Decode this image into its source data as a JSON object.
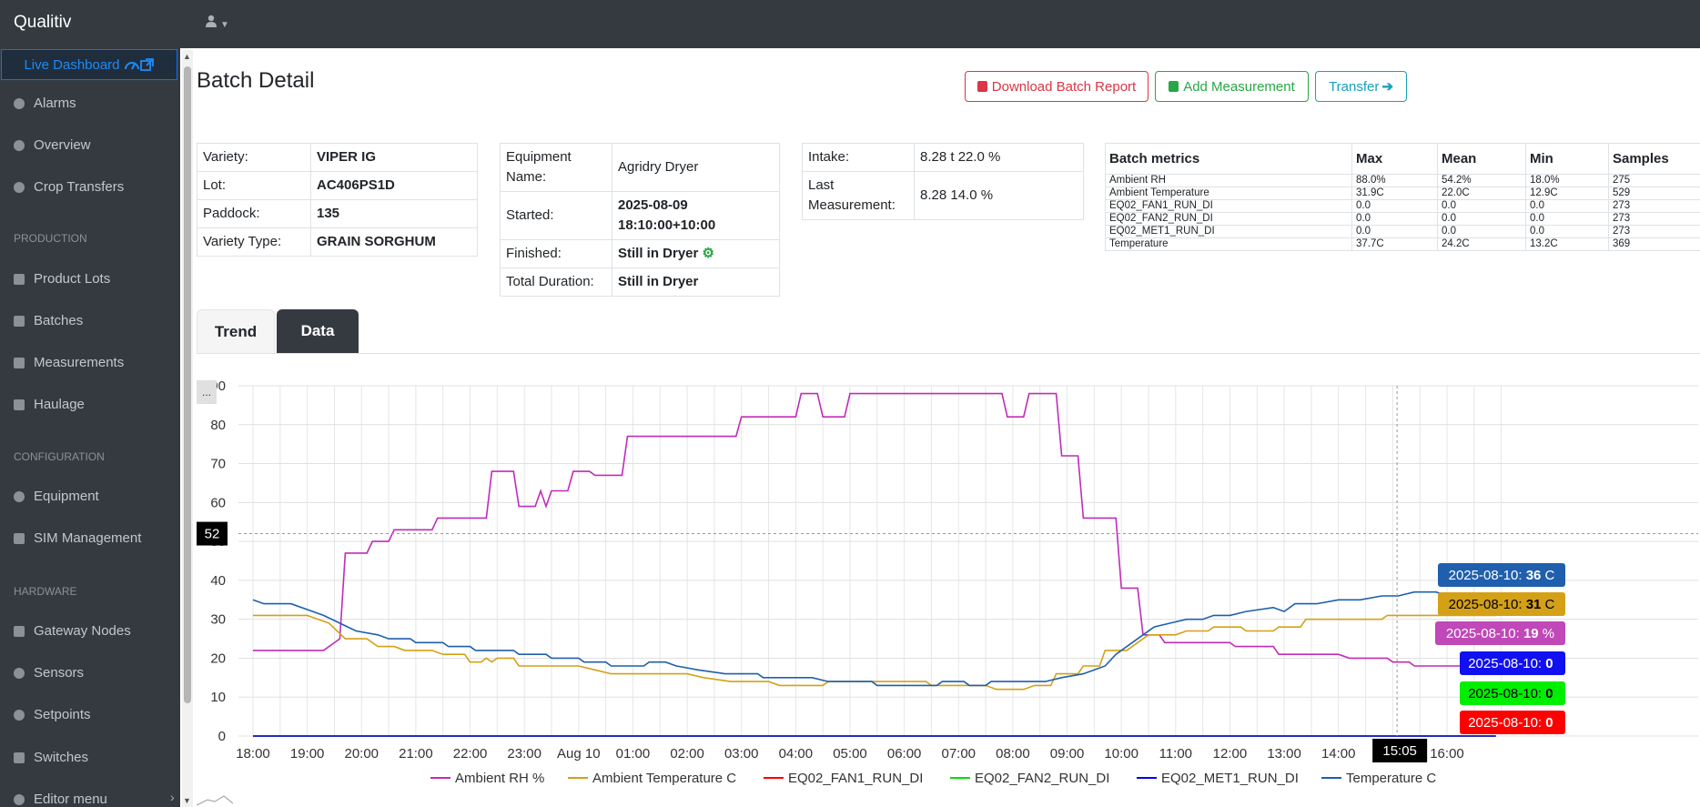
{
  "app": {
    "title": "Qualitiv"
  },
  "sidebar": {
    "live_dashboard": "Live Dashboard",
    "items": [
      {
        "label": "Alarms"
      },
      {
        "label": "Overview"
      },
      {
        "label": "Crop Transfers"
      },
      {
        "label": "Product Lots"
      },
      {
        "label": "Batches"
      },
      {
        "label": "Measurements"
      },
      {
        "label": "Haulage"
      },
      {
        "label": "Equipment"
      },
      {
        "label": "SIM Management"
      },
      {
        "label": "Gateway Nodes"
      },
      {
        "label": "Sensors"
      },
      {
        "label": "Setpoints"
      },
      {
        "label": "Switches"
      },
      {
        "label": "Editor menu"
      }
    ],
    "sections": {
      "production": "PRODUCTION",
      "configuration": "CONFIGURATION",
      "hardware": "HARDWARE"
    }
  },
  "page": {
    "title": "Batch Detail",
    "buttons": {
      "download": "Download Batch Report",
      "add": "Add Measurement",
      "transfer": "Transfer"
    }
  },
  "batch": [
    {
      "label": "Variety:",
      "value": "VIPER IG"
    },
    {
      "label": "Lot:",
      "value": "AC406PS1D"
    },
    {
      "label": "Paddock:",
      "value": "135"
    },
    {
      "label": "Variety Type:",
      "value": "GRAIN SORGHUM"
    }
  ],
  "equipment": [
    {
      "label": "Equipment Name:",
      "value": "Agridry Dryer"
    },
    {
      "label": "Started:",
      "value": "2025-08-09 18:10:00+10:00"
    },
    {
      "label": "Finished:",
      "value": "Still in Dryer"
    },
    {
      "label": "Total Duration:",
      "value": "Still in Dryer"
    }
  ],
  "intake": [
    {
      "label": "Intake:",
      "value": "8.28 t 22.0 %"
    },
    {
      "label": "Last Measurement:",
      "value": "8.28 14.0 %"
    }
  ],
  "metrics": {
    "headers": [
      "Batch metrics",
      "Max",
      "Mean",
      "Min",
      "Samples"
    ],
    "rows": [
      [
        "Ambient RH",
        "88.0%",
        "54.2%",
        "18.0%",
        "275"
      ],
      [
        "Ambient Temperature",
        "31.9C",
        "22.0C",
        "12.9C",
        "529"
      ],
      [
        "EQ02_FAN1_RUN_DI",
        "0.0",
        "0.0",
        "0.0",
        "273"
      ],
      [
        "EQ02_FAN2_RUN_DI",
        "0.0",
        "0.0",
        "0.0",
        "273"
      ],
      [
        "EQ02_MET1_RUN_DI",
        "0.0",
        "0.0",
        "0.0",
        "273"
      ],
      [
        "Temperature",
        "37.7C",
        "24.2C",
        "13.2C",
        "369"
      ]
    ]
  },
  "tabs": [
    {
      "label": "Trend"
    },
    {
      "label": "Data"
    }
  ],
  "chart_data": {
    "type": "line",
    "x_ticks": [
      "18:00",
      "19:00",
      "20:00",
      "21:00",
      "22:00",
      "23:00",
      "Aug 10",
      "01:00",
      "02:00",
      "03:00",
      "04:00",
      "05:00",
      "06:00",
      "07:00",
      "08:00",
      "09:00",
      "10:00",
      "11:00",
      "12:00",
      "13:00",
      "14:00",
      "15:00",
      "16:00"
    ],
    "y_ticks": [
      0,
      10,
      20,
      30,
      40,
      50,
      60,
      70,
      80,
      90
    ],
    "ylim": [
      0,
      90
    ],
    "crosshair": {
      "x_label": "15:05",
      "y_label": "52"
    },
    "series": [
      {
        "name": "Ambient RH %",
        "color": "#c02cba",
        "unit": "%",
        "points": [
          [
            18.0,
            22
          ],
          [
            19.3,
            22
          ],
          [
            19.6,
            25
          ],
          [
            19.7,
            47
          ],
          [
            20.1,
            47
          ],
          [
            20.2,
            50
          ],
          [
            20.5,
            50
          ],
          [
            20.6,
            53
          ],
          [
            21.3,
            53
          ],
          [
            21.4,
            56
          ],
          [
            22.3,
            56
          ],
          [
            22.4,
            68
          ],
          [
            22.8,
            68
          ],
          [
            22.9,
            59
          ],
          [
            23.2,
            59
          ],
          [
            23.3,
            63
          ],
          [
            23.4,
            59
          ],
          [
            23.5,
            63
          ],
          [
            23.8,
            63
          ],
          [
            23.9,
            68
          ],
          [
            24.2,
            68
          ],
          [
            24.3,
            67
          ],
          [
            24.8,
            67
          ],
          [
            24.9,
            77
          ],
          [
            26.9,
            77
          ],
          [
            27.0,
            82
          ],
          [
            28.0,
            82
          ],
          [
            28.1,
            88
          ],
          [
            28.4,
            88
          ],
          [
            28.5,
            82
          ],
          [
            28.9,
            82
          ],
          [
            29.0,
            88
          ],
          [
            31.8,
            88
          ],
          [
            31.9,
            82
          ],
          [
            32.2,
            82
          ],
          [
            32.3,
            88
          ],
          [
            32.8,
            88
          ],
          [
            32.9,
            72
          ],
          [
            33.2,
            72
          ],
          [
            33.3,
            56
          ],
          [
            33.9,
            56
          ],
          [
            34.0,
            38
          ],
          [
            34.3,
            38
          ],
          [
            34.4,
            26
          ],
          [
            34.7,
            26
          ],
          [
            34.8,
            24
          ],
          [
            36.0,
            24
          ],
          [
            36.1,
            23
          ],
          [
            36.8,
            23
          ],
          [
            36.9,
            21
          ],
          [
            38.0,
            21
          ],
          [
            38.2,
            20
          ],
          [
            38.9,
            20
          ],
          [
            39.0,
            19
          ],
          [
            39.3,
            19
          ],
          [
            39.4,
            18
          ],
          [
            40.3,
            18
          ],
          [
            40.4,
            19
          ],
          [
            40.5,
            17
          ],
          [
            40.6,
            18
          ],
          [
            40.9,
            18
          ]
        ]
      },
      {
        "name": "Ambient Temperature C",
        "color": "#d4a017",
        "unit": "C",
        "points": [
          [
            18.0,
            31
          ],
          [
            19.0,
            31
          ],
          [
            19.2,
            30
          ],
          [
            19.4,
            29
          ],
          [
            19.7,
            25
          ],
          [
            20.1,
            25
          ],
          [
            20.3,
            23
          ],
          [
            20.6,
            23
          ],
          [
            20.8,
            22
          ],
          [
            21.3,
            22
          ],
          [
            21.5,
            21
          ],
          [
            21.9,
            21
          ],
          [
            22.0,
            19
          ],
          [
            22.2,
            19
          ],
          [
            22.3,
            20
          ],
          [
            22.4,
            19
          ],
          [
            22.5,
            20
          ],
          [
            22.8,
            20
          ],
          [
            22.9,
            18
          ],
          [
            24.0,
            18
          ],
          [
            24.3,
            17
          ],
          [
            24.6,
            16
          ],
          [
            26.0,
            16
          ],
          [
            26.3,
            15
          ],
          [
            26.8,
            14
          ],
          [
            27.5,
            14
          ],
          [
            27.7,
            13
          ],
          [
            28.5,
            13
          ],
          [
            28.6,
            14
          ],
          [
            30.4,
            14
          ],
          [
            30.5,
            13
          ],
          [
            31.5,
            13
          ],
          [
            31.7,
            12
          ],
          [
            32.2,
            12
          ],
          [
            32.4,
            13
          ],
          [
            32.7,
            13
          ],
          [
            32.8,
            16
          ],
          [
            33.2,
            16
          ],
          [
            33.3,
            18
          ],
          [
            33.6,
            18
          ],
          [
            33.7,
            22
          ],
          [
            34.1,
            22
          ],
          [
            34.3,
            24
          ],
          [
            34.5,
            26
          ],
          [
            35.0,
            26
          ],
          [
            35.2,
            27
          ],
          [
            35.6,
            27
          ],
          [
            35.7,
            28
          ],
          [
            36.2,
            28
          ],
          [
            36.3,
            27
          ],
          [
            36.8,
            27
          ],
          [
            36.9,
            28
          ],
          [
            37.3,
            28
          ],
          [
            37.4,
            30
          ],
          [
            38.8,
            30
          ],
          [
            38.9,
            31
          ],
          [
            40.9,
            31
          ]
        ]
      },
      {
        "name": "EQ02_FAN1_RUN_DI",
        "color": "#ff0000",
        "unit": "",
        "points": [
          [
            18.0,
            0
          ],
          [
            40.9,
            0
          ]
        ]
      },
      {
        "name": "EQ02_FAN2_RUN_DI",
        "color": "#00e000",
        "unit": "",
        "points": [
          [
            18.0,
            0
          ],
          [
            40.9,
            0
          ]
        ]
      },
      {
        "name": "EQ02_MET1_RUN_DI",
        "color": "#0000ee",
        "unit": "",
        "points": [
          [
            18.0,
            0
          ],
          [
            40.9,
            0
          ]
        ]
      },
      {
        "name": "Temperature C",
        "color": "#1f5fad",
        "unit": "C",
        "points": [
          [
            18.0,
            35
          ],
          [
            18.2,
            34
          ],
          [
            18.7,
            34
          ],
          [
            19.3,
            31
          ],
          [
            19.9,
            27
          ],
          [
            20.3,
            26
          ],
          [
            20.5,
            25
          ],
          [
            20.9,
            25
          ],
          [
            21.0,
            24
          ],
          [
            21.5,
            24
          ],
          [
            21.6,
            23
          ],
          [
            22.0,
            23
          ],
          [
            22.1,
            22
          ],
          [
            22.8,
            22
          ],
          [
            22.9,
            21
          ],
          [
            23.4,
            21
          ],
          [
            23.5,
            20
          ],
          [
            24.0,
            20
          ],
          [
            24.1,
            19
          ],
          [
            24.5,
            19
          ],
          [
            24.6,
            18
          ],
          [
            25.2,
            18
          ],
          [
            25.3,
            19
          ],
          [
            25.6,
            19
          ],
          [
            25.8,
            18
          ],
          [
            26.2,
            17
          ],
          [
            26.7,
            16
          ],
          [
            27.3,
            16
          ],
          [
            27.4,
            15
          ],
          [
            28.3,
            15
          ],
          [
            28.6,
            14
          ],
          [
            29.4,
            14
          ],
          [
            29.5,
            13
          ],
          [
            30.6,
            13
          ],
          [
            30.7,
            14
          ],
          [
            31.1,
            14
          ],
          [
            31.2,
            13
          ],
          [
            31.5,
            13
          ],
          [
            31.6,
            14
          ],
          [
            32.6,
            14
          ],
          [
            32.9,
            15
          ],
          [
            33.3,
            16
          ],
          [
            33.7,
            18
          ],
          [
            33.9,
            21
          ],
          [
            34.2,
            24
          ],
          [
            34.4,
            26
          ],
          [
            34.6,
            28
          ],
          [
            34.9,
            29
          ],
          [
            35.2,
            30
          ],
          [
            35.5,
            30
          ],
          [
            35.7,
            31
          ],
          [
            36.0,
            31
          ],
          [
            36.3,
            32
          ],
          [
            36.8,
            33
          ],
          [
            37.0,
            32
          ],
          [
            37.2,
            34
          ],
          [
            37.6,
            34
          ],
          [
            38.0,
            35
          ],
          [
            38.4,
            35
          ],
          [
            38.8,
            36
          ],
          [
            39.1,
            36
          ],
          [
            39.4,
            37
          ],
          [
            39.8,
            37
          ],
          [
            40.0,
            36
          ],
          [
            40.5,
            36
          ],
          [
            40.8,
            35
          ],
          [
            40.9,
            34
          ]
        ]
      }
    ],
    "tooltips": [
      {
        "text": "2025-08-10:",
        "value": "36",
        "unit": "C",
        "bg": "#1f5fad",
        "fg": "#ffffff"
      },
      {
        "text": "2025-08-10:",
        "value": "31",
        "unit": "C",
        "bg": "#d4a017",
        "fg": "#000000"
      },
      {
        "text": "2025-08-10:",
        "value": "19",
        "unit": "%",
        "bg": "#c048b8",
        "fg": "#ffffff"
      },
      {
        "text": "2025-08-10:",
        "value": "0",
        "unit": "",
        "bg": "#1010f0",
        "fg": "#ffffff"
      },
      {
        "text": "2025-08-10:",
        "value": "0",
        "unit": "",
        "bg": "#00ee00",
        "fg": "#000000"
      },
      {
        "text": "2025-08-10:",
        "value": "0",
        "unit": "",
        "bg": "#ff0000",
        "fg": "#ffffff"
      }
    ],
    "corner_label": "..."
  }
}
